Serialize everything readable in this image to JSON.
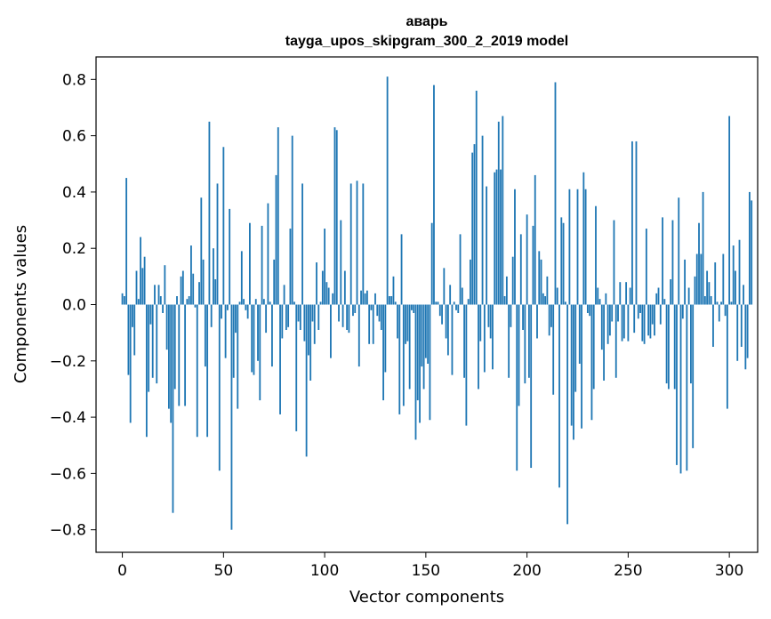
{
  "chart_data": {
    "type": "bar",
    "title": "аварь",
    "subtitle": "tayga_upos_skipgram_300_2_2019 model",
    "xlabel": "Vector components",
    "ylabel": "Components values",
    "xlim": [
      -13,
      314
    ],
    "ylim": [
      -0.88,
      0.88
    ],
    "xticks": [
      0,
      50,
      100,
      150,
      200,
      250,
      300
    ],
    "yticks": [
      -0.8,
      -0.6,
      -0.4,
      -0.2,
      0.0,
      0.2,
      0.4,
      0.6,
      0.8
    ],
    "ytick_labels": [
      "−0.8",
      "−0.6",
      "−0.4",
      "−0.2",
      "0.0",
      "0.2",
      "0.4",
      "0.6",
      "0.8"
    ],
    "bar_color": "#1f77b4",
    "values": [
      0.04,
      0.03,
      0.45,
      -0.25,
      -0.42,
      -0.08,
      -0.18,
      0.12,
      0.02,
      0.24,
      0.13,
      0.17,
      -0.47,
      -0.31,
      -0.07,
      -0.26,
      0.07,
      -0.28,
      0.07,
      0.03,
      -0.03,
      0.14,
      -0.16,
      -0.37,
      -0.42,
      -0.74,
      -0.3,
      0.03,
      -0.36,
      0.1,
      0.12,
      -0.36,
      0.02,
      0.03,
      0.21,
      0.11,
      -0.01,
      -0.47,
      0.08,
      0.38,
      0.16,
      -0.22,
      -0.47,
      0.65,
      -0.08,
      0.2,
      0.09,
      0.43,
      -0.59,
      -0.05,
      0.56,
      -0.19,
      -0.02,
      0.34,
      -0.8,
      -0.26,
      -0.1,
      -0.37,
      0.01,
      0.19,
      0.02,
      -0.02,
      -0.05,
      0.29,
      -0.24,
      -0.25,
      0.02,
      -0.2,
      -0.34,
      0.28,
      0.02,
      -0.1,
      0.36,
      0.01,
      -0.22,
      0.16,
      0.46,
      0.63,
      -0.39,
      -0.12,
      0.07,
      -0.09,
      -0.08,
      0.27,
      0.6,
      0.01,
      -0.45,
      -0.06,
      -0.09,
      0.43,
      -0.13,
      -0.54,
      -0.18,
      -0.27,
      -0.06,
      -0.14,
      0.15,
      -0.09,
      0.01,
      0.12,
      0.27,
      0.08,
      0.06,
      -0.19,
      0.04,
      0.63,
      0.62,
      -0.06,
      0.3,
      -0.08,
      0.12,
      -0.09,
      -0.1,
      0.43,
      -0.04,
      -0.03,
      0.44,
      -0.22,
      0.05,
      0.43,
      0.04,
      0.05,
      -0.14,
      -0.02,
      -0.14,
      0.04,
      -0.04,
      -0.06,
      -0.09,
      -0.34,
      -0.24,
      0.81,
      0.03,
      0.03,
      0.1,
      0.01,
      -0.12,
      -0.39,
      0.25,
      -0.36,
      -0.14,
      -0.13,
      -0.3,
      -0.02,
      -0.03,
      -0.48,
      -0.34,
      -0.42,
      -0.22,
      -0.3,
      -0.19,
      -0.21,
      -0.41,
      0.29,
      0.78,
      0.01,
      0.01,
      -0.04,
      -0.07,
      0.13,
      -0.12,
      -0.18,
      0.07,
      -0.25,
      0.01,
      -0.02,
      -0.03,
      0.25,
      0.06,
      -0.26,
      -0.43,
      0.02,
      0.16,
      0.54,
      0.57,
      0.76,
      -0.3,
      -0.13,
      0.6,
      -0.24,
      0.42,
      -0.08,
      -0.12,
      -0.23,
      0.47,
      0.48,
      0.65,
      0.48,
      0.67,
      0.03,
      0.1,
      -0.26,
      -0.08,
      0.17,
      0.41,
      -0.59,
      -0.36,
      0.25,
      -0.09,
      -0.28,
      0.32,
      -0.26,
      -0.58,
      0.28,
      0.46,
      -0.12,
      0.19,
      0.16,
      0.04,
      0.03,
      0.1,
      -0.11,
      -0.08,
      -0.32,
      0.79,
      0.06,
      -0.65,
      0.31,
      0.29,
      0.01,
      -0.78,
      0.41,
      -0.43,
      -0.48,
      -0.31,
      0.41,
      -0.21,
      -0.44,
      0.47,
      0.41,
      -0.03,
      -0.04,
      -0.41,
      -0.3,
      0.35,
      0.06,
      0.02,
      -0.16,
      -0.27,
      0.04,
      -0.14,
      -0.11,
      -0.06,
      0.3,
      -0.26,
      -0.06,
      0.08,
      -0.13,
      -0.12,
      0.08,
      -0.13,
      0.06,
      0.58,
      -0.1,
      0.58,
      -0.05,
      -0.03,
      -0.13,
      -0.14,
      0.27,
      -0.11,
      -0.12,
      -0.07,
      -0.11,
      0.04,
      0.06,
      -0.07,
      0.31,
      0.02,
      -0.28,
      -0.3,
      0.09,
      0.3,
      -0.3,
      -0.57,
      0.38,
      -0.6,
      -0.05,
      0.16,
      -0.59,
      0.06,
      -0.28,
      -0.51,
      0.1,
      0.18,
      0.29,
      0.18,
      0.4,
      0.03,
      0.12,
      0.08,
      0.03,
      -0.15,
      0.15,
      0.01,
      -0.06,
      0.01,
      0.18,
      -0.04,
      -0.37,
      0.67,
      0.01,
      0.21,
      0.12,
      -0.2,
      0.23,
      -0.15,
      0.07,
      -0.23,
      -0.19,
      0.4,
      0.37
    ]
  }
}
